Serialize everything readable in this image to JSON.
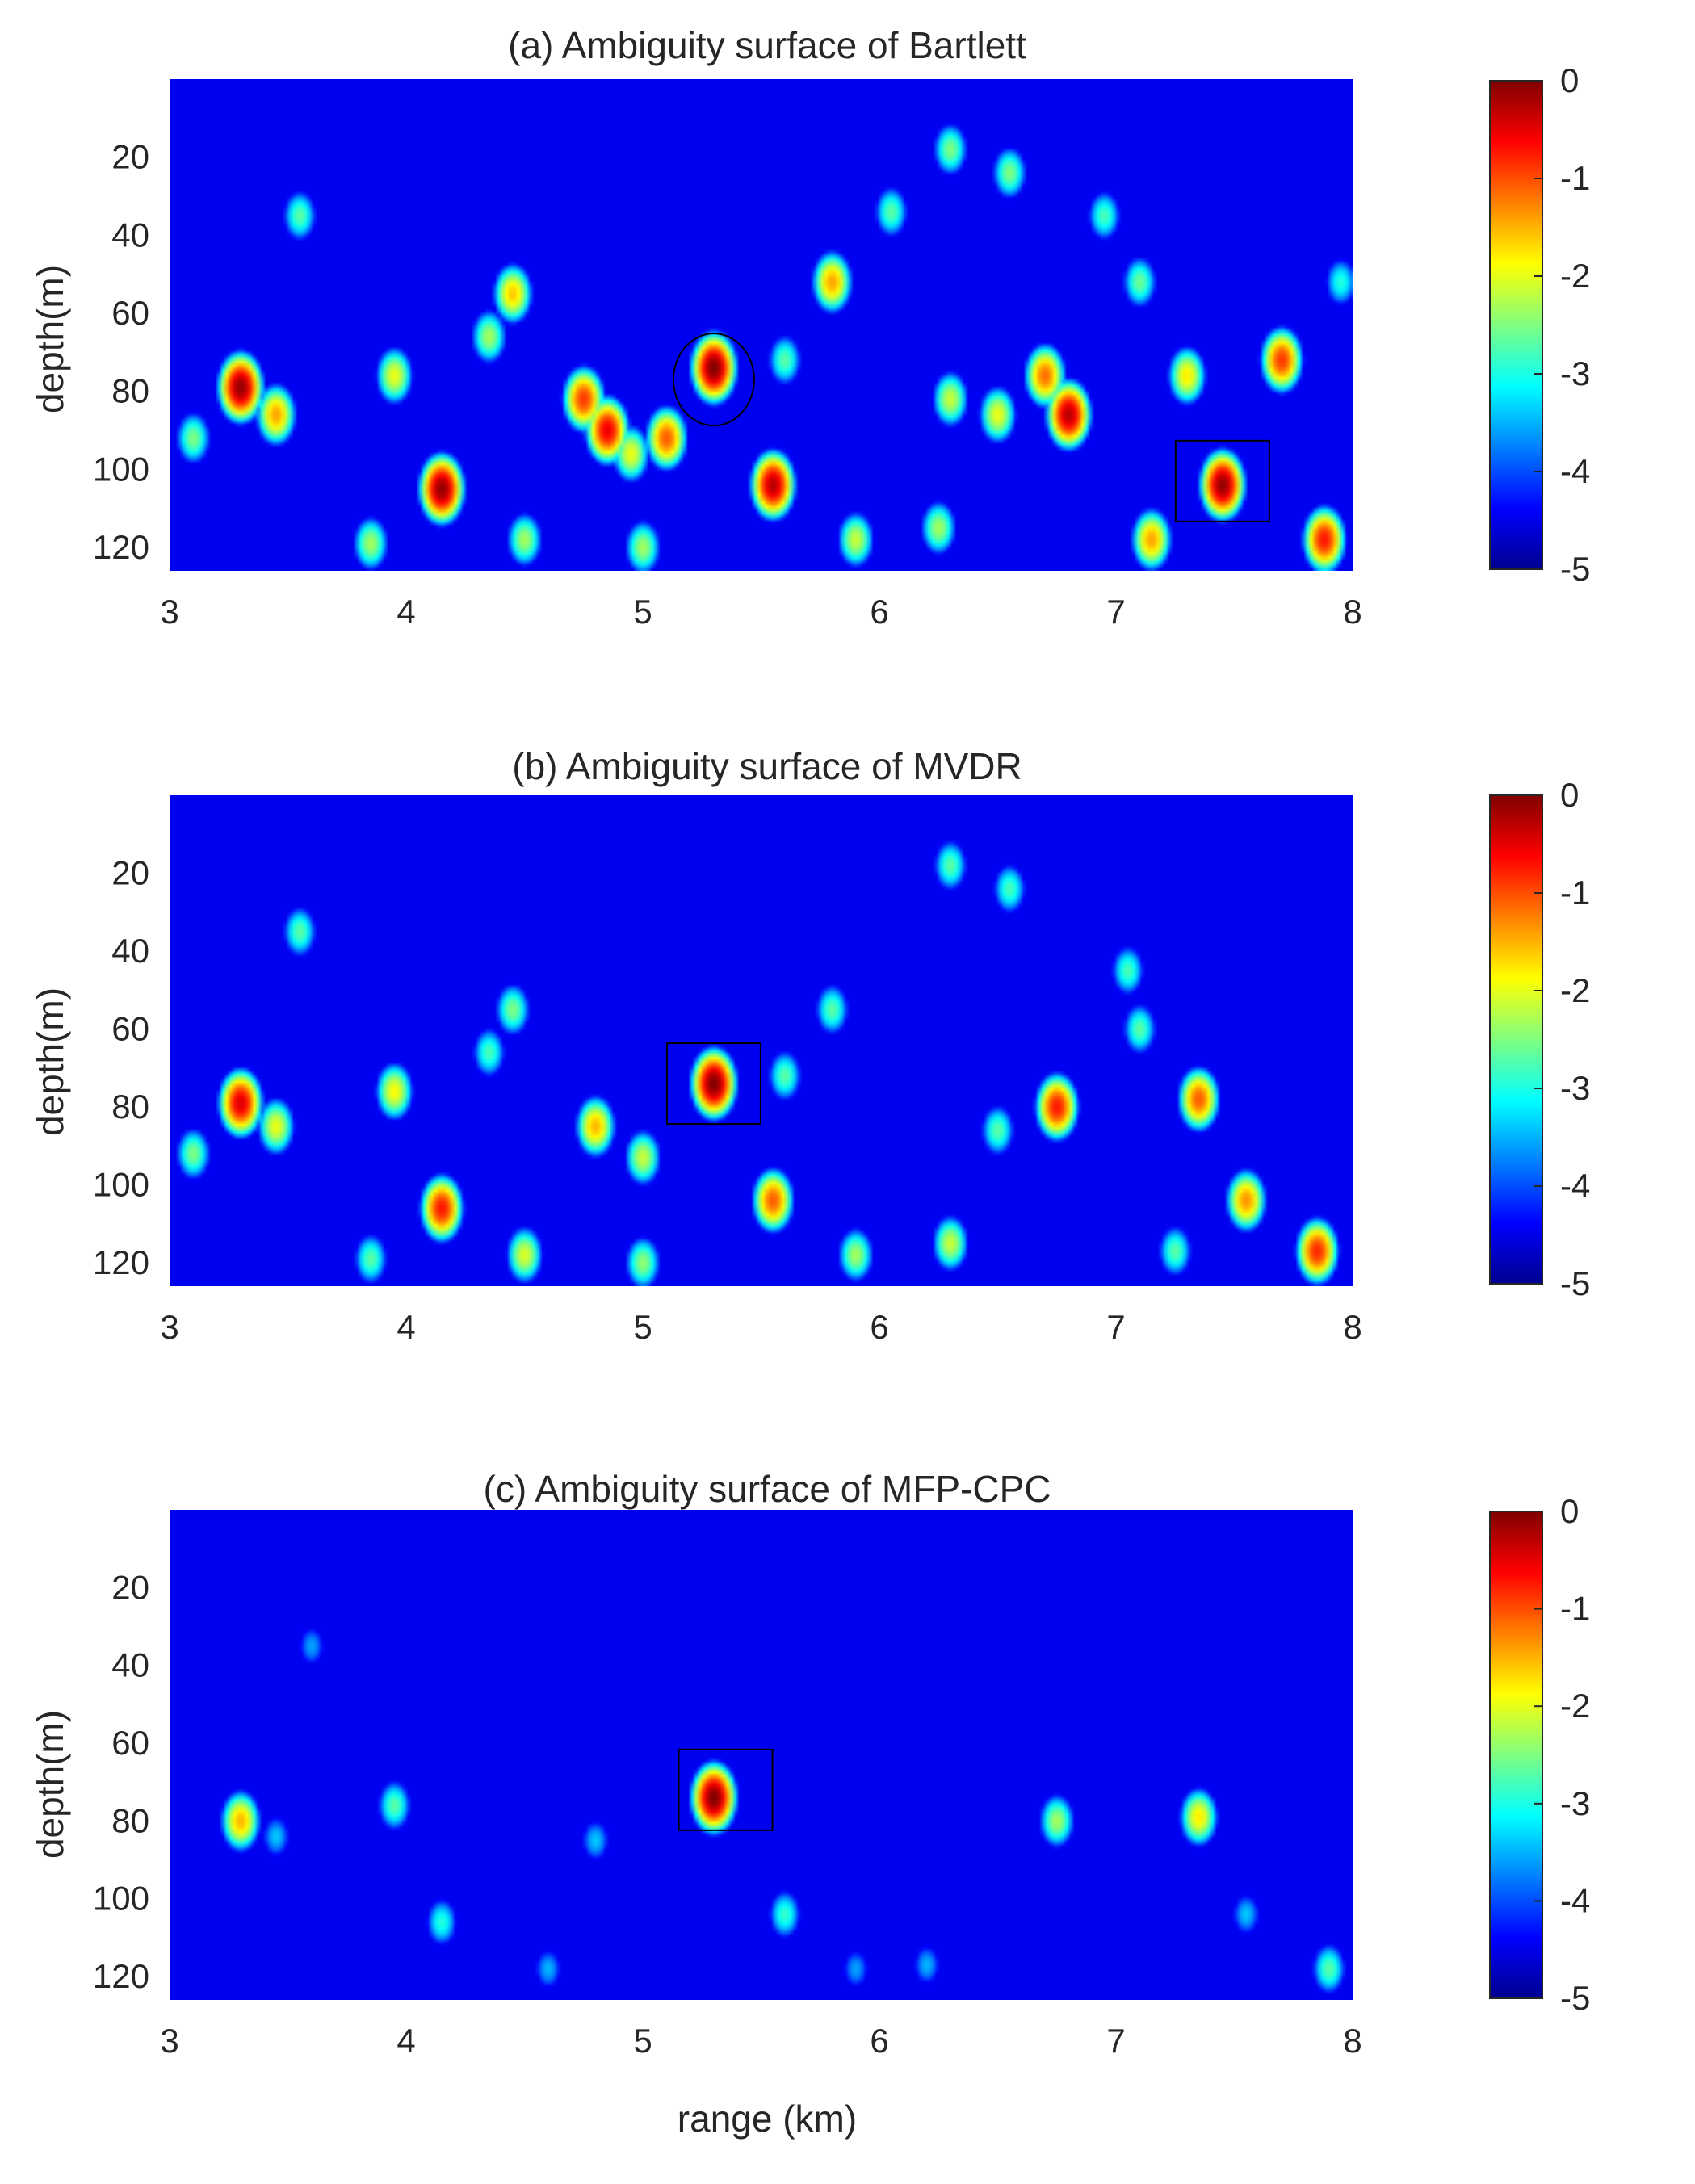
{
  "figure": {
    "xlabel": "range (km)"
  },
  "colormap": {
    "name": "jet",
    "stops": [
      "#00008f",
      "#0000ff",
      "#0080ff",
      "#00ffff",
      "#80ff80",
      "#ffff00",
      "#ff8000",
      "#ff0000",
      "#800000"
    ]
  },
  "chart_data": [
    {
      "type": "heatmap",
      "title": "(a) Ambiguity surface of Bartlett",
      "xlabel": "",
      "ylabel": "depth(m)",
      "xlim": [
        3,
        8
      ],
      "ylim": [
        0,
        126
      ],
      "y_reversed": true,
      "x_ticks": [
        "3",
        "4",
        "5",
        "6",
        "7",
        "8"
      ],
      "y_ticks": [
        "20",
        "40",
        "60",
        "80",
        "100",
        "120"
      ],
      "colorbar": {
        "range": [
          -5,
          0
        ],
        "ticks": [
          "0",
          "-1",
          "-2",
          "-3",
          "-4",
          "-5"
        ]
      },
      "peaks": [
        {
          "range_km": 3.3,
          "depth_m": 79,
          "level": -0.1
        },
        {
          "range_km": 3.45,
          "depth_m": 86,
          "level": -1.6
        },
        {
          "range_km": 3.1,
          "depth_m": 92,
          "level": -2.8
        },
        {
          "range_km": 3.55,
          "depth_m": 35,
          "level": -3.0
        },
        {
          "range_km": 3.95,
          "depth_m": 76,
          "level": -2.2
        },
        {
          "range_km": 4.15,
          "depth_m": 105,
          "level": -0.1
        },
        {
          "range_km": 3.85,
          "depth_m": 119,
          "level": -2.6
        },
        {
          "range_km": 4.45,
          "depth_m": 55,
          "level": -1.8
        },
        {
          "range_km": 4.35,
          "depth_m": 66,
          "level": -2.6
        },
        {
          "range_km": 4.5,
          "depth_m": 118,
          "level": -2.6
        },
        {
          "range_km": 4.75,
          "depth_m": 82,
          "level": -1.0
        },
        {
          "range_km": 4.85,
          "depth_m": 90,
          "level": -0.6
        },
        {
          "range_km": 4.95,
          "depth_m": 96,
          "level": -2.2
        },
        {
          "range_km": 5.1,
          "depth_m": 92,
          "level": -1.2
        },
        {
          "range_km": 5.3,
          "depth_m": 74,
          "level": 0.0
        },
        {
          "range_km": 5.55,
          "depth_m": 104,
          "level": -0.3
        },
        {
          "range_km": 5.6,
          "depth_m": 72,
          "level": -3.0
        },
        {
          "range_km": 5.0,
          "depth_m": 120,
          "level": -2.6
        },
        {
          "range_km": 5.8,
          "depth_m": 52,
          "level": -1.6
        },
        {
          "range_km": 5.9,
          "depth_m": 118,
          "level": -2.4
        },
        {
          "range_km": 6.05,
          "depth_m": 34,
          "level": -3.0
        },
        {
          "range_km": 6.25,
          "depth_m": 115,
          "level": -2.6
        },
        {
          "range_km": 6.3,
          "depth_m": 82,
          "level": -2.4
        },
        {
          "range_km": 6.3,
          "depth_m": 18,
          "level": -2.8
        },
        {
          "range_km": 6.55,
          "depth_m": 24,
          "level": -2.8
        },
        {
          "range_km": 6.5,
          "depth_m": 86,
          "level": -2.2
        },
        {
          "range_km": 6.7,
          "depth_m": 76,
          "level": -1.3
        },
        {
          "range_km": 6.8,
          "depth_m": 86,
          "level": -0.3
        },
        {
          "range_km": 6.95,
          "depth_m": 35,
          "level": -3.1
        },
        {
          "range_km": 7.1,
          "depth_m": 52,
          "level": -2.9
        },
        {
          "range_km": 7.15,
          "depth_m": 118,
          "level": -1.6
        },
        {
          "range_km": 7.3,
          "depth_m": 76,
          "level": -2.0
        },
        {
          "range_km": 7.45,
          "depth_m": 104,
          "level": -0.1
        },
        {
          "range_km": 7.7,
          "depth_m": 72,
          "level": -1.0
        },
        {
          "range_km": 7.88,
          "depth_m": 118,
          "level": -0.8
        },
        {
          "range_km": 7.95,
          "depth_m": 52,
          "level": -3.3
        }
      ],
      "markers": [
        {
          "shape": "circle",
          "range_km": 5.3,
          "depth_m": 77
        },
        {
          "shape": "square",
          "range_km": 7.45,
          "depth_m": 103
        }
      ]
    },
    {
      "type": "heatmap",
      "title": "(b) Ambiguity surface of MVDR",
      "xlabel": "",
      "ylabel": "depth(m)",
      "xlim": [
        3,
        8
      ],
      "ylim": [
        0,
        126
      ],
      "y_reversed": true,
      "x_ticks": [
        "3",
        "4",
        "5",
        "6",
        "7",
        "8"
      ],
      "y_ticks": [
        "20",
        "40",
        "60",
        "80",
        "100",
        "120"
      ],
      "colorbar": {
        "range": [
          -5,
          0
        ],
        "ticks": [
          "0",
          "-1",
          "-2",
          "-3",
          "-4",
          "-5"
        ]
      },
      "peaks": [
        {
          "range_km": 3.3,
          "depth_m": 79,
          "level": -0.5
        },
        {
          "range_km": 3.45,
          "depth_m": 85,
          "level": -2.2
        },
        {
          "range_km": 3.1,
          "depth_m": 92,
          "level": -2.8
        },
        {
          "range_km": 3.55,
          "depth_m": 35,
          "level": -3.0
        },
        {
          "range_km": 3.95,
          "depth_m": 76,
          "level": -2.1
        },
        {
          "range_km": 4.15,
          "depth_m": 106,
          "level": -0.8
        },
        {
          "range_km": 3.85,
          "depth_m": 119,
          "level": -3.0
        },
        {
          "range_km": 4.45,
          "depth_m": 55,
          "level": -2.8
        },
        {
          "range_km": 4.35,
          "depth_m": 66,
          "level": -3.1
        },
        {
          "range_km": 4.5,
          "depth_m": 118,
          "level": -2.3
        },
        {
          "range_km": 4.8,
          "depth_m": 85,
          "level": -1.7
        },
        {
          "range_km": 5.0,
          "depth_m": 93,
          "level": -2.4
        },
        {
          "range_km": 5.3,
          "depth_m": 74,
          "level": 0.0
        },
        {
          "range_km": 5.55,
          "depth_m": 104,
          "level": -1.2
        },
        {
          "range_km": 5.6,
          "depth_m": 72,
          "level": -3.0
        },
        {
          "range_km": 5.0,
          "depth_m": 120,
          "level": -2.7
        },
        {
          "range_km": 5.8,
          "depth_m": 55,
          "level": -3.0
        },
        {
          "range_km": 5.9,
          "depth_m": 118,
          "level": -2.6
        },
        {
          "range_km": 6.3,
          "depth_m": 115,
          "level": -2.4
        },
        {
          "range_km": 6.3,
          "depth_m": 18,
          "level": -3.0
        },
        {
          "range_km": 6.55,
          "depth_m": 24,
          "level": -3.1
        },
        {
          "range_km": 6.5,
          "depth_m": 86,
          "level": -3.0
        },
        {
          "range_km": 6.75,
          "depth_m": 80,
          "level": -0.8
        },
        {
          "range_km": 7.05,
          "depth_m": 45,
          "level": -3.1
        },
        {
          "range_km": 7.1,
          "depth_m": 60,
          "level": -3.0
        },
        {
          "range_km": 7.25,
          "depth_m": 117,
          "level": -3.0
        },
        {
          "range_km": 7.35,
          "depth_m": 78,
          "level": -1.2
        },
        {
          "range_km": 7.55,
          "depth_m": 104,
          "level": -1.5
        },
        {
          "range_km": 7.85,
          "depth_m": 117,
          "level": -0.9
        }
      ],
      "markers": [
        {
          "shape": "square",
          "range_km": 5.3,
          "depth_m": 74
        }
      ]
    },
    {
      "type": "heatmap",
      "title": "(c) Ambiguity surface of MFP-CPC",
      "xlabel": "range (km)",
      "ylabel": "depth(m)",
      "xlim": [
        3,
        8
      ],
      "ylim": [
        0,
        126
      ],
      "y_reversed": true,
      "x_ticks": [
        "3",
        "4",
        "5",
        "6",
        "7",
        "8"
      ],
      "y_ticks": [
        "20",
        "40",
        "60",
        "80",
        "100",
        "120"
      ],
      "colorbar": {
        "range": [
          -5,
          0
        ],
        "ticks": [
          "0",
          "-1",
          "-2",
          "-3",
          "-4",
          "-5"
        ]
      },
      "peaks": [
        {
          "range_km": 3.3,
          "depth_m": 80,
          "level": -1.7
        },
        {
          "range_km": 3.45,
          "depth_m": 84,
          "level": -3.8
        },
        {
          "range_km": 3.6,
          "depth_m": 35,
          "level": -4.0
        },
        {
          "range_km": 3.95,
          "depth_m": 76,
          "level": -3.0
        },
        {
          "range_km": 4.15,
          "depth_m": 106,
          "level": -3.3
        },
        {
          "range_km": 4.8,
          "depth_m": 85,
          "level": -3.8
        },
        {
          "range_km": 4.6,
          "depth_m": 118,
          "level": -3.9
        },
        {
          "range_km": 5.3,
          "depth_m": 74,
          "level": 0.0
        },
        {
          "range_km": 5.6,
          "depth_m": 104,
          "level": -3.2
        },
        {
          "range_km": 5.9,
          "depth_m": 118,
          "level": -4.0
        },
        {
          "range_km": 6.2,
          "depth_m": 117,
          "level": -3.9
        },
        {
          "range_km": 6.75,
          "depth_m": 80,
          "level": -2.6
        },
        {
          "range_km": 7.35,
          "depth_m": 79,
          "level": -2.0
        },
        {
          "range_km": 7.55,
          "depth_m": 104,
          "level": -3.8
        },
        {
          "range_km": 7.9,
          "depth_m": 118,
          "level": -3.0
        }
      ],
      "markers": [
        {
          "shape": "square",
          "range_km": 5.35,
          "depth_m": 72
        }
      ]
    }
  ]
}
